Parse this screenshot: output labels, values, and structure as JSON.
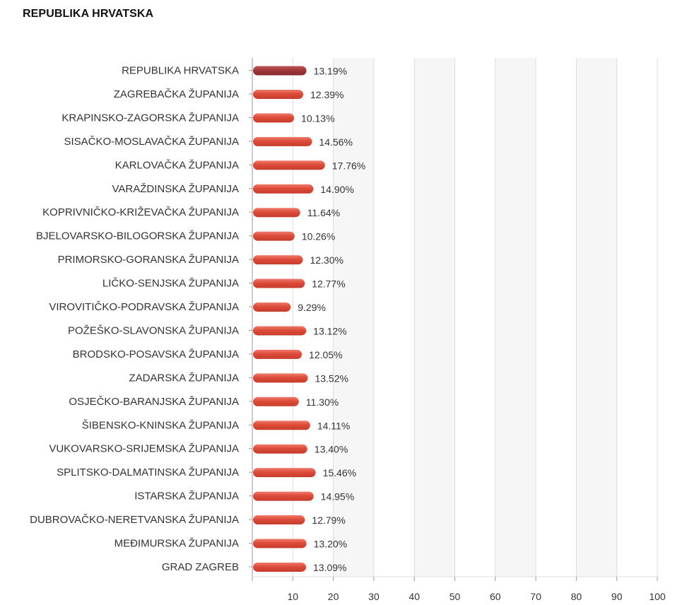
{
  "page_title": "REPUBLIKA HRVATSKA",
  "colors": {
    "highlight_bar": "#a0373a",
    "bar": "#dd4b39",
    "band": "#f6f6f6",
    "grid": "#dddddd",
    "axis": "#9a9a9a"
  },
  "chart_data": {
    "type": "bar",
    "orientation": "horizontal",
    "title": "REPUBLIKA HRVATSKA",
    "xlabel": "",
    "ylabel": "",
    "xlim": [
      0,
      100
    ],
    "x_ticks": [
      10,
      20,
      30,
      40,
      50,
      60,
      70,
      80,
      90,
      100
    ],
    "grid": true,
    "highlight_category": "REPUBLIKA HRVATSKA",
    "categories": [
      "REPUBLIKA HRVATSKA",
      "ZAGREBAČKA ŽUPANIJA",
      "KRAPINSKO-ZAGORSKA ŽUPANIJA",
      "SISAČKO-MOSLAVAČKA ŽUPANIJA",
      "KARLOVAČKA ŽUPANIJA",
      "VARAŽDINSKA ŽUPANIJA",
      "KOPRIVNIČKO-KRIŽEVAČKA ŽUPANIJA",
      "BJELOVARSKO-BILOGORSKA ŽUPANIJA",
      "PRIMORSKO-GORANSKA ŽUPANIJA",
      "LIČKO-SENJSKA ŽUPANIJA",
      "VIROVITIČKO-PODRAVSKA ŽUPANIJA",
      "POŽEŠKO-SLAVONSKA ŽUPANIJA",
      "BRODSKO-POSAVSKA ŽUPANIJA",
      "ZADARSKA ŽUPANIJA",
      "OSJEČKO-BARANJSKA ŽUPANIJA",
      "ŠIBENSKO-KNINSKA ŽUPANIJA",
      "VUKOVARSKO-SRIJEMSKA ŽUPANIJA",
      "SPLITSKO-DALMATINSKA ŽUPANIJA",
      "ISTARSKA ŽUPANIJA",
      "DUBROVAČKO-NERETVANSKA ŽUPANIJA",
      "MEĐIMURSKA ŽUPANIJA",
      "GRAD ZAGREB"
    ],
    "values": [
      13.19,
      12.39,
      10.13,
      14.56,
      17.76,
      14.9,
      11.64,
      10.26,
      12.3,
      12.77,
      9.29,
      13.12,
      12.05,
      13.52,
      11.3,
      14.11,
      13.4,
      15.46,
      14.95,
      12.79,
      13.2,
      13.09
    ],
    "value_labels": [
      "13.19%",
      "12.39%",
      "10.13%",
      "14.56%",
      "17.76%",
      "14.90%",
      "11.64%",
      "10.26%",
      "12.30%",
      "12.77%",
      "9.29%",
      "13.12%",
      "12.05%",
      "13.52%",
      "11.30%",
      "14.11%",
      "13.40%",
      "15.46%",
      "14.95%",
      "12.79%",
      "13.20%",
      "13.09%"
    ]
  }
}
